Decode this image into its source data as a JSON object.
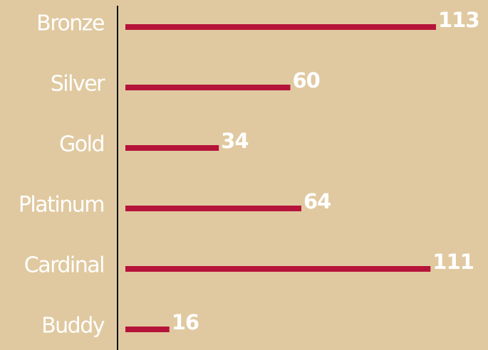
{
  "chart_data": {
    "type": "bar",
    "orientation": "horizontal",
    "categories": [
      "Bronze",
      "Silver",
      "Gold",
      "Platinum",
      "Cardinal",
      "Buddy"
    ],
    "values": [
      113,
      60,
      34,
      64,
      111,
      16
    ],
    "title": "",
    "xlabel": "",
    "ylabel": "",
    "xlim": [
      0,
      113
    ],
    "grid": false,
    "legend": "none",
    "data_labels": true
  },
  "colors": {
    "background": "#e0c9a0",
    "bar": "#b5133a",
    "axis": "#111111",
    "text": "#ffffff"
  }
}
